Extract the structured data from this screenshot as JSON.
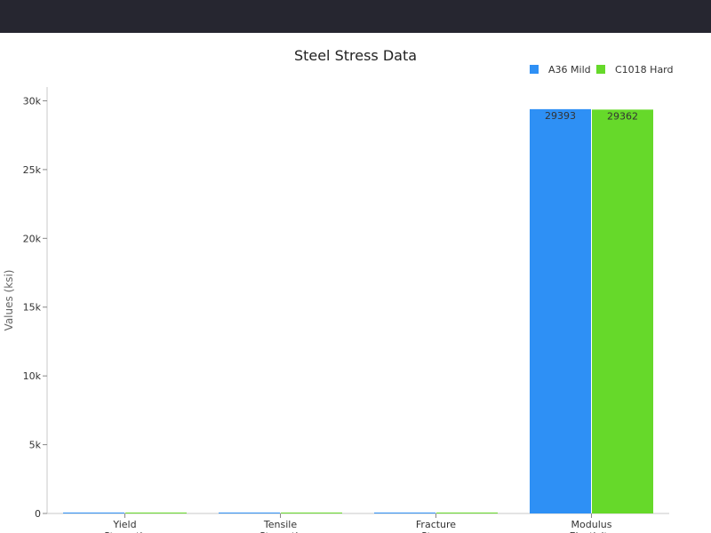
{
  "chart_data": {
    "type": "bar",
    "title": "Steel Stress Data",
    "ylabel": "Values (ksi)",
    "xlabel": "",
    "categories": [
      [
        "Yield",
        "Strength"
      ],
      [
        "Tensile",
        "Strength"
      ],
      [
        "Fracture",
        "Stress"
      ],
      [
        "Modulus",
        "Elasticity"
      ]
    ],
    "series": [
      {
        "name": "A36 Mild",
        "color": "#2e90f5",
        "values": [
          36,
          58,
          48,
          29393
        ]
      },
      {
        "name": "C1018 Hard",
        "color": "#66d92a",
        "values": [
          54,
          64,
          52,
          29362
        ]
      }
    ],
    "data_labels_for_category_index": 3,
    "ylim": [
      0,
      31000
    ],
    "yticks": [
      0,
      5000,
      10000,
      15000,
      20000,
      25000,
      30000
    ],
    "ytick_labels": [
      "0",
      "5k",
      "10k",
      "15k",
      "20k",
      "25k",
      "30k"
    ],
    "grid": false,
    "legend_position": "top-right"
  }
}
